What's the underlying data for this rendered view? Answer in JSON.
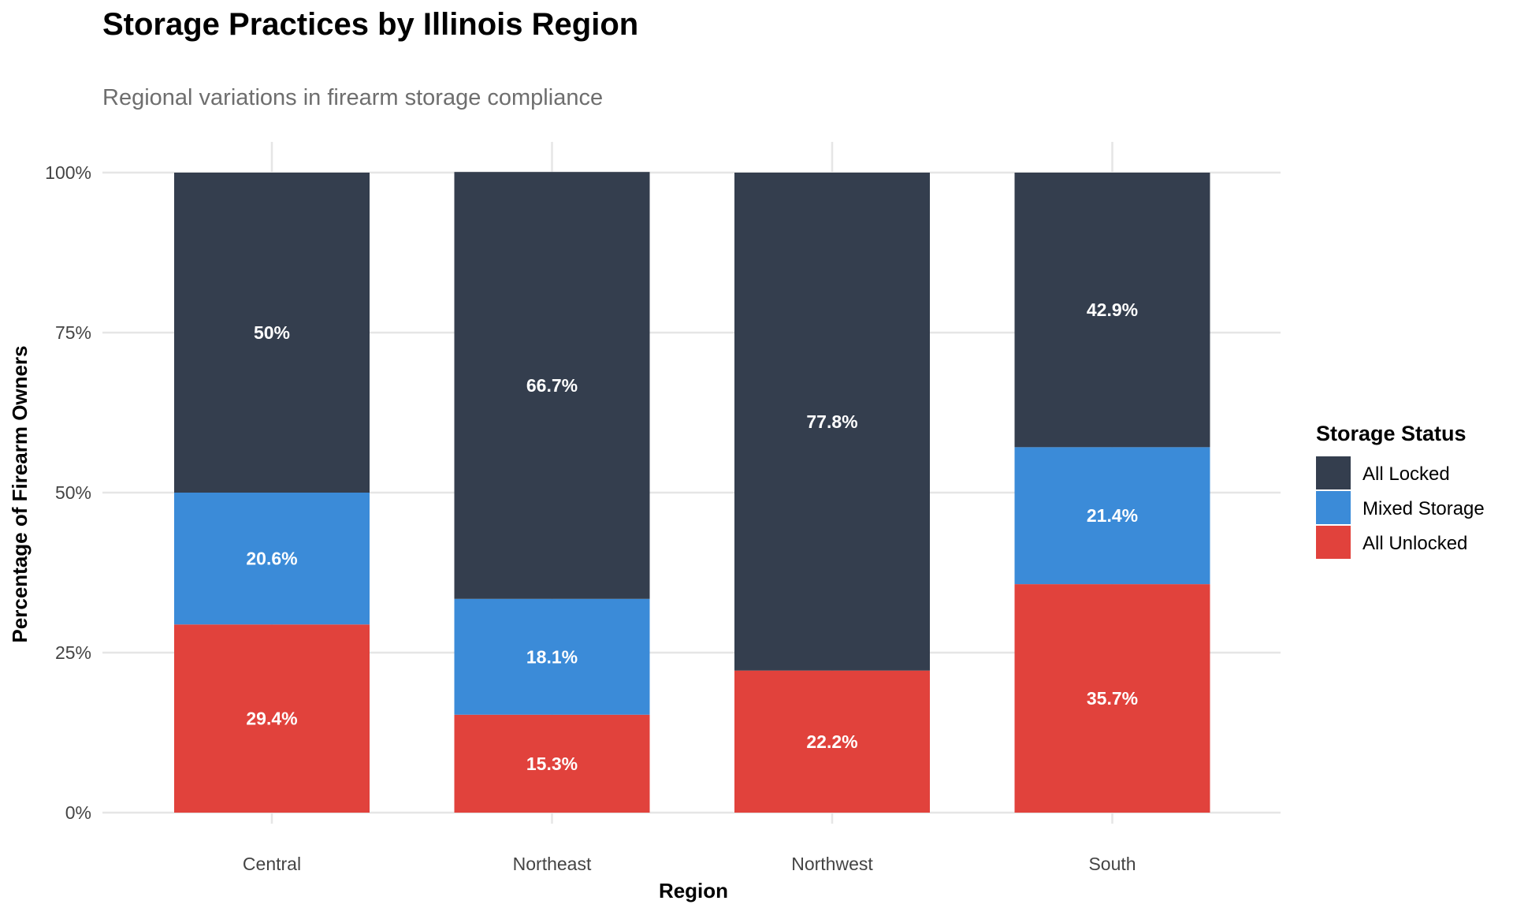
{
  "chart_data": {
    "type": "bar",
    "stacked": true,
    "title": "Storage Practices by Illinois Region",
    "subtitle": "Regional variations in firearm storage compliance",
    "xlabel": "Region",
    "ylabel": "Percentage of Firearm Owners",
    "categories": [
      "Central",
      "Northeast",
      "Northwest",
      "South"
    ],
    "ylim": [
      0,
      100
    ],
    "y_ticks": [
      0,
      25,
      50,
      75,
      100
    ],
    "y_tick_labels": [
      "0%",
      "25%",
      "50%",
      "75%",
      "100%"
    ],
    "grid": true,
    "legend": {
      "title": "Storage Status",
      "position": "right"
    },
    "series": [
      {
        "name": "All Unlocked",
        "color": "#E1423C",
        "values": [
          29.4,
          15.3,
          22.2,
          35.7
        ],
        "labels": [
          "29.4%",
          "15.3%",
          "22.2%",
          "35.7%"
        ]
      },
      {
        "name": "Mixed Storage",
        "color": "#3B8BD8",
        "values": [
          20.6,
          18.1,
          0,
          21.4
        ],
        "labels": [
          "20.6%",
          "18.1%",
          "",
          "21.4%"
        ]
      },
      {
        "name": "All Locked",
        "color": "#343E4E",
        "values": [
          50,
          66.7,
          77.8,
          42.9
        ],
        "labels": [
          "50%",
          "66.7%",
          "77.8%",
          "42.9%"
        ]
      }
    ],
    "legend_order": [
      "All Locked",
      "Mixed Storage",
      "All Unlocked"
    ]
  }
}
